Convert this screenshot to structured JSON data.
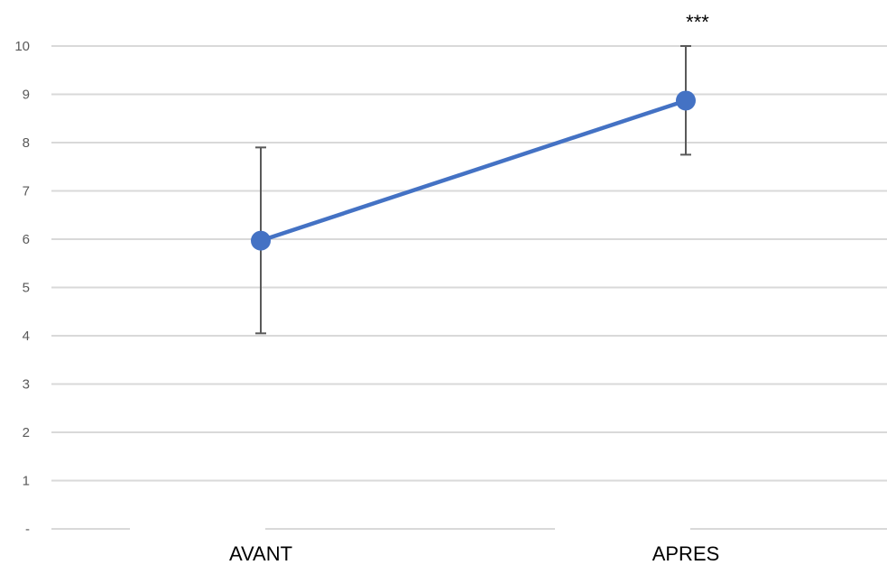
{
  "chart_data": {
    "type": "line",
    "categories": [
      "AVANT",
      "APRES"
    ],
    "series": [
      {
        "values": [
          5.97,
          8.87
        ],
        "error_low": [
          4.05,
          7.75
        ],
        "error_high": [
          7.9,
          10.0
        ]
      }
    ],
    "ylim": [
      0,
      10
    ],
    "yticks": [
      {
        "value": 0,
        "label": "-"
      },
      {
        "value": 1,
        "label": "1"
      },
      {
        "value": 2,
        "label": "2"
      },
      {
        "value": 3,
        "label": "3"
      },
      {
        "value": 4,
        "label": "4"
      },
      {
        "value": 5,
        "label": "5"
      },
      {
        "value": 6,
        "label": "6"
      },
      {
        "value": 7,
        "label": "7"
      },
      {
        "value": 8,
        "label": "8"
      },
      {
        "value": 9,
        "label": "9"
      },
      {
        "value": 10,
        "label": "10"
      }
    ],
    "annotations": [
      {
        "category": "APRES",
        "text": "***"
      }
    ],
    "grid": true,
    "legend": "none",
    "colors": {
      "line": "#4472C4",
      "marker": "#4472C4",
      "error_bar": "#595959",
      "grid": "#D9D9D9",
      "tick_text": "#595959",
      "category_text": "#000000"
    }
  }
}
